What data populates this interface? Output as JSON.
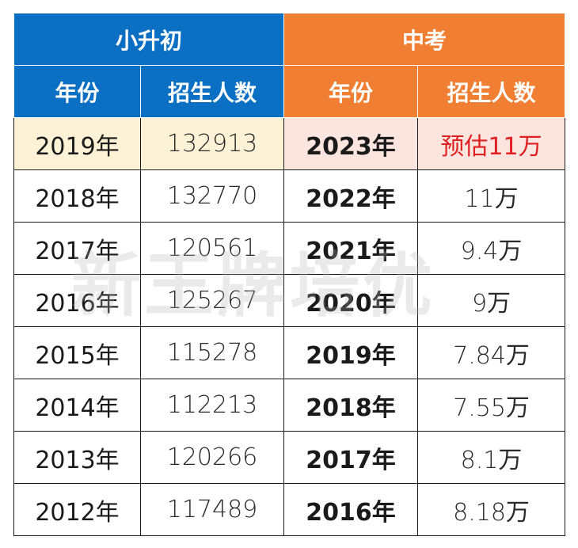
{
  "groups": {
    "left": "小升初",
    "right": "中考"
  },
  "headers": {
    "left_year": "年份",
    "left_count": "招生人数",
    "right_year": "年份",
    "right_count": "招生人数"
  },
  "rows": [
    {
      "left_year": "2019年",
      "left_count": "132913",
      "right_year": "2023年",
      "right_count": "预估11万"
    },
    {
      "left_year": "2018年",
      "left_count": "132770",
      "right_year": "2022年",
      "right_count": "11万"
    },
    {
      "left_year": "2017年",
      "left_count": "120561",
      "right_year": "2021年",
      "right_count": "9.4万"
    },
    {
      "left_year": "2016年",
      "left_count": "125267",
      "right_year": "2020年",
      "right_count": "9万"
    },
    {
      "left_year": "2015年",
      "left_count": "115278",
      "right_year": "2019年",
      "right_count": "7.84万"
    },
    {
      "left_year": "2014年",
      "left_count": "112213",
      "right_year": "2018年",
      "right_count": "7.55万"
    },
    {
      "left_year": "2013年",
      "left_count": "120266",
      "right_year": "2017年",
      "right_count": "8.1万"
    },
    {
      "left_year": "2012年",
      "left_count": "117489",
      "right_year": "2016年",
      "right_count": "8.18万"
    }
  ],
  "watermark": "新王牌培优",
  "colors": {
    "xsc_header": "#0b6fc4",
    "zk_header": "#f07f33",
    "highlight_left": "#fdf2d5",
    "highlight_right": "#fce4df",
    "estimate_text": "#e02020"
  }
}
